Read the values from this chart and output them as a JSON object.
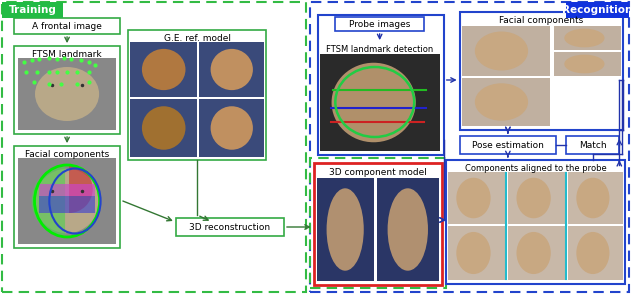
{
  "fig_width": 6.4,
  "fig_height": 2.94,
  "dpi": 100,
  "bg": "white",
  "training_label": "Training",
  "recognition_label": "Recognition",
  "train_tag_color": "#22bb44",
  "recog_tag_color": "#1133dd",
  "green_solid": "#33aa44",
  "green_dash": "#33bb44",
  "blue_solid": "#2244cc",
  "blue_dash": "#2244cc",
  "red_solid": "#dd2222",
  "arrow_green": "#337733",
  "arrow_blue": "#2233aa",
  "face_skin": "#c8a87a",
  "face_bg_gray": "#888888",
  "face_bg_blue": "#3a4a7a",
  "face_bg_dark": "#444444",
  "face_bg_light": "#aaa090",
  "labels": {
    "frontal_image": "A frontal image",
    "ftsm_landmark": "FTSM landmark",
    "facial_components": "Facial components",
    "ge_ref_model": "G.E. ref. model",
    "reconstruction_3d": "3D reconstruction",
    "probe_images": "Probe images",
    "ftsm_detection": "FTSM landmark detection",
    "component_model_3d": "3D component model",
    "facial_components_r": "Facial components",
    "pose_estimation": "Pose estimation",
    "match": "Match",
    "components_aligned": "Components aligned to the probe"
  }
}
